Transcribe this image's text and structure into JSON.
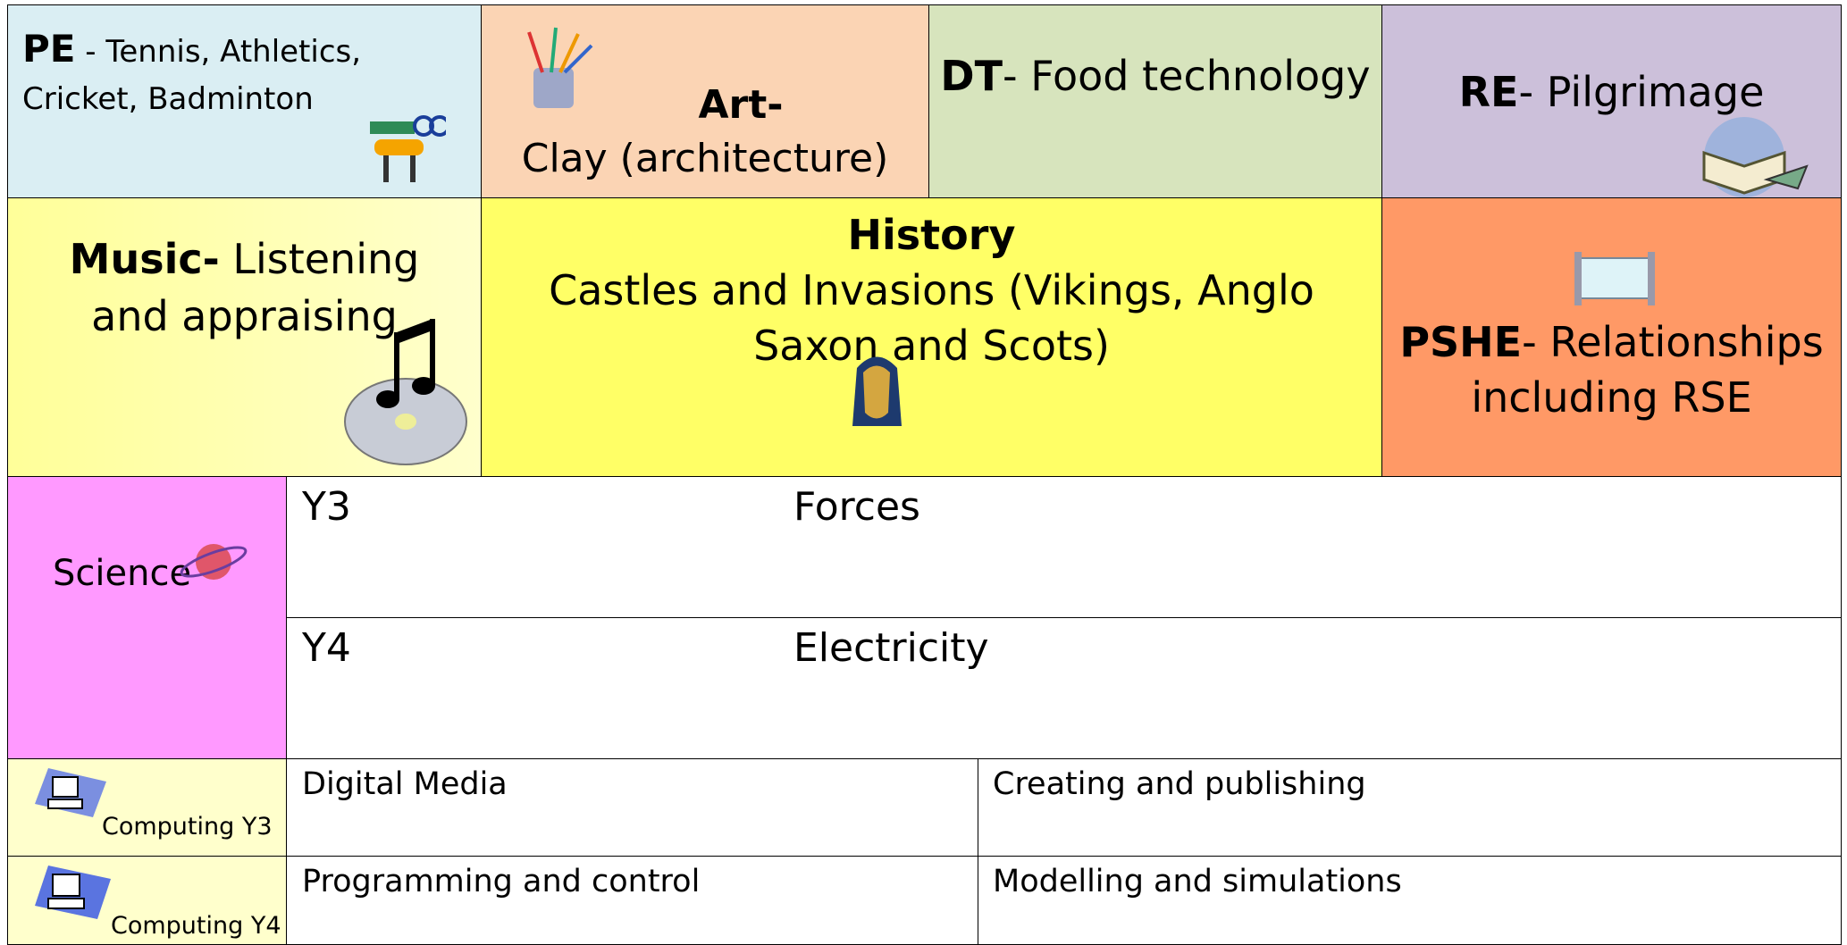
{
  "top": [
    {
      "label": "PE",
      "text": "- Tennis, Athletics, Cricket, Badminton"
    },
    {
      "label": "Art-",
      "text": "Clay (architecture)"
    },
    {
      "label": "DT",
      "text": "- Food technology"
    },
    {
      "label": "RE",
      "text": "- Pilgrimage"
    }
  ],
  "middle": [
    {
      "label": "Music-",
      "text": "Listening and appraising"
    },
    {
      "label": "History",
      "text": "Castles and Invasions (Vikings, Anglo Saxon and Scots)"
    },
    {
      "label": "PSHE",
      "text": "- Relationships including RSE"
    }
  ],
  "science": {
    "label": "Science",
    "rows": [
      {
        "year": "Y3",
        "topic": "Forces"
      },
      {
        "year": "Y4",
        "topic": "Electricity"
      }
    ]
  },
  "computing": [
    {
      "label": "Computing Y3",
      "topics": [
        "Digital Media",
        "Creating and publishing"
      ]
    },
    {
      "label": "Computing Y4",
      "topics": [
        "Programming and control",
        "Modelling and simulations"
      ]
    }
  ]
}
